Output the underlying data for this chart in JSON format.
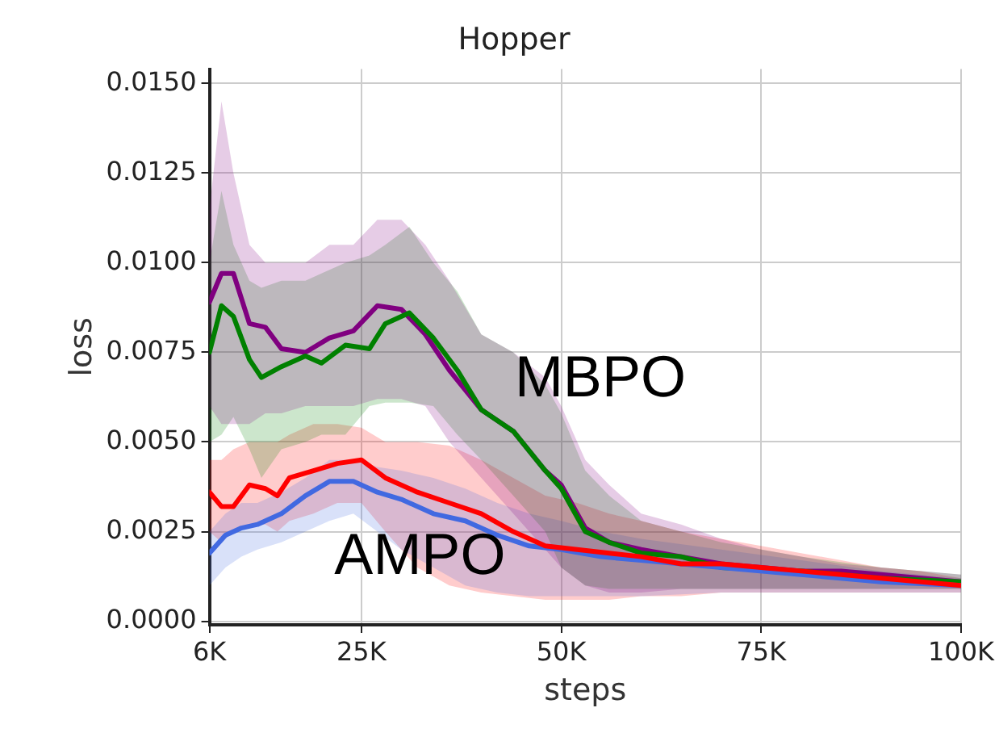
{
  "chart_data": {
    "type": "line",
    "title": "Hopper",
    "xlabel": "steps",
    "ylabel": "loss",
    "grid": true,
    "legend": false,
    "marker": "none",
    "line_style": "solid",
    "xlim": [
      6000,
      100000
    ],
    "xticks": [
      {
        "value": 6000,
        "label": "6K"
      },
      {
        "value": 25000,
        "label": "25K"
      },
      {
        "value": 50000,
        "label": "50K"
      },
      {
        "value": 75000,
        "label": "75K"
      },
      {
        "value": 100000,
        "label": "100K"
      }
    ],
    "ylim": [
      -0.0001,
      0.0154
    ],
    "yticks": [
      {
        "value": 0,
        "label": "0.0000"
      },
      {
        "value": 0.0025,
        "label": "0.0025"
      },
      {
        "value": 0.005,
        "label": "0.0050"
      },
      {
        "value": 0.0075,
        "label": "0.0075"
      },
      {
        "value": 0.01,
        "label": "0.0100"
      },
      {
        "value": 0.0125,
        "label": "0.0125"
      },
      {
        "value": 0.015,
        "label": "0.0150"
      }
    ],
    "annotations": [
      "MBPO",
      "AMPO"
    ],
    "series": [
      {
        "color": "#800080",
        "x": [
          6000,
          7500,
          9000,
          11000,
          13000,
          15000,
          18000,
          21000,
          24000,
          27000,
          30000,
          33000,
          36000,
          40000,
          44000,
          48000,
          50000,
          53000,
          56000,
          60000,
          65000,
          70000,
          75000,
          80000,
          85000,
          90000,
          95000,
          100000
        ],
        "values": [
          0.0089,
          0.0097,
          0.0097,
          0.0083,
          0.0082,
          0.0076,
          0.0075,
          0.0079,
          0.0081,
          0.0088,
          0.0087,
          0.008,
          0.007,
          0.0059,
          0.0053,
          0.0042,
          0.0038,
          0.0026,
          0.0022,
          0.002,
          0.0018,
          0.0016,
          0.0015,
          0.0014,
          0.0014,
          0.0013,
          0.0012,
          0.0011
        ],
        "upper": [
          0.0115,
          0.0145,
          0.0125,
          0.0105,
          0.01,
          0.01,
          0.01,
          0.0105,
          0.0105,
          0.0112,
          0.0112,
          0.0105,
          0.0095,
          0.008,
          0.0075,
          0.0068,
          0.006,
          0.0045,
          0.0038,
          0.003,
          0.0027,
          0.0023,
          0.002,
          0.0018,
          0.0016,
          0.0015,
          0.0014,
          0.0013
        ],
        "lower": [
          0.006,
          0.0055,
          0.0055,
          0.0055,
          0.0058,
          0.0058,
          0.006,
          0.006,
          0.006,
          0.0062,
          0.0062,
          0.006,
          0.005,
          0.004,
          0.003,
          0.002,
          0.0015,
          0.001,
          0.0008,
          0.0008,
          0.0009,
          0.0009,
          0.0009,
          0.0009,
          0.0009,
          0.0009,
          0.0009,
          0.0009
        ]
      },
      {
        "color": "#008000",
        "x": [
          6000,
          7500,
          9000,
          11000,
          12500,
          15000,
          18000,
          20000,
          23000,
          26000,
          28000,
          31000,
          34000,
          37000,
          40000,
          44000,
          48000,
          50000,
          53000,
          56000,
          60000,
          65000,
          70000,
          80000,
          90000,
          100000
        ],
        "values": [
          0.0075,
          0.0088,
          0.0085,
          0.0073,
          0.0068,
          0.0071,
          0.0074,
          0.0072,
          0.0077,
          0.0076,
          0.0083,
          0.0086,
          0.0079,
          0.007,
          0.0059,
          0.0053,
          0.0042,
          0.0037,
          0.0025,
          0.0022,
          0.0019,
          0.0018,
          0.0015,
          0.0014,
          0.0012,
          0.0011
        ],
        "upper": [
          0.01,
          0.012,
          0.0105,
          0.0095,
          0.0093,
          0.0095,
          0.0095,
          0.0097,
          0.01,
          0.0102,
          0.0105,
          0.011,
          0.01,
          0.0092,
          0.008,
          0.0075,
          0.0066,
          0.0058,
          0.0042,
          0.0035,
          0.0028,
          0.0025,
          0.0022,
          0.0018,
          0.0015,
          0.0013
        ],
        "lower": [
          0.005,
          0.0052,
          0.0057,
          0.0048,
          0.004,
          0.0048,
          0.005,
          0.0052,
          0.0052,
          0.006,
          0.0061,
          0.0061,
          0.006,
          0.0052,
          0.0045,
          0.0035,
          0.0025,
          0.0015,
          0.001,
          0.0009,
          0.0009,
          0.0009,
          0.0009,
          0.0009,
          0.0009,
          0.0009
        ]
      },
      {
        "color": "#4169e1",
        "x": [
          6000,
          8000,
          10000,
          12000,
          15000,
          18000,
          21000,
          24000,
          27000,
          30000,
          34000,
          38000,
          42000,
          46000,
          50000,
          55000,
          60000,
          70000,
          80000,
          90000,
          100000
        ],
        "values": [
          0.0019,
          0.0024,
          0.0026,
          0.0027,
          0.003,
          0.0035,
          0.0039,
          0.0039,
          0.0036,
          0.0034,
          0.003,
          0.0028,
          0.0024,
          0.0021,
          0.002,
          0.0018,
          0.0017,
          0.0015,
          0.0013,
          0.0011,
          0.001
        ],
        "upper": [
          0.0025,
          0.003,
          0.0033,
          0.0033,
          0.0036,
          0.004,
          0.0045,
          0.0045,
          0.0043,
          0.0042,
          0.004,
          0.0037,
          0.0033,
          0.003,
          0.0028,
          0.0025,
          0.0023,
          0.002,
          0.0017,
          0.0014,
          0.0012
        ],
        "lower": [
          0.001,
          0.0015,
          0.0018,
          0.002,
          0.0022,
          0.0025,
          0.0028,
          0.003,
          0.0025,
          0.002,
          0.0015,
          0.001,
          0.0008,
          0.0007,
          0.0007,
          0.0007,
          0.0007,
          0.0008,
          0.0008,
          0.0008,
          0.0008
        ]
      },
      {
        "color": "#ff0000",
        "x": [
          6000,
          7500,
          9000,
          11000,
          13000,
          14500,
          16000,
          19000,
          22000,
          25000,
          28000,
          32000,
          36000,
          40000,
          44000,
          48000,
          52000,
          56000,
          60000,
          65000,
          70000,
          75000,
          80000,
          85000,
          90000,
          95000,
          100000
        ],
        "values": [
          0.0036,
          0.0032,
          0.0032,
          0.0038,
          0.0037,
          0.0035,
          0.004,
          0.0042,
          0.0044,
          0.0045,
          0.004,
          0.0036,
          0.0033,
          0.003,
          0.0025,
          0.0021,
          0.002,
          0.0019,
          0.0018,
          0.0016,
          0.0016,
          0.0015,
          0.0014,
          0.0013,
          0.0012,
          0.0011,
          0.001
        ],
        "upper": [
          0.0045,
          0.0045,
          0.0048,
          0.005,
          0.005,
          0.005,
          0.0052,
          0.0055,
          0.0055,
          0.0054,
          0.005,
          0.005,
          0.0049,
          0.0045,
          0.004,
          0.0035,
          0.0033,
          0.003,
          0.0028,
          0.0025,
          0.0023,
          0.0021,
          0.0019,
          0.0017,
          0.0015,
          0.0014,
          0.0012
        ],
        "lower": [
          0.0025,
          0.0022,
          0.0025,
          0.0027,
          0.0027,
          0.0025,
          0.0028,
          0.003,
          0.0033,
          0.0033,
          0.0025,
          0.0015,
          0.001,
          0.0008,
          0.0007,
          0.0006,
          0.0006,
          0.0006,
          0.0007,
          0.0007,
          0.0008,
          0.0008,
          0.0008,
          0.0008,
          0.0008,
          0.0008,
          0.0008
        ]
      }
    ]
  }
}
